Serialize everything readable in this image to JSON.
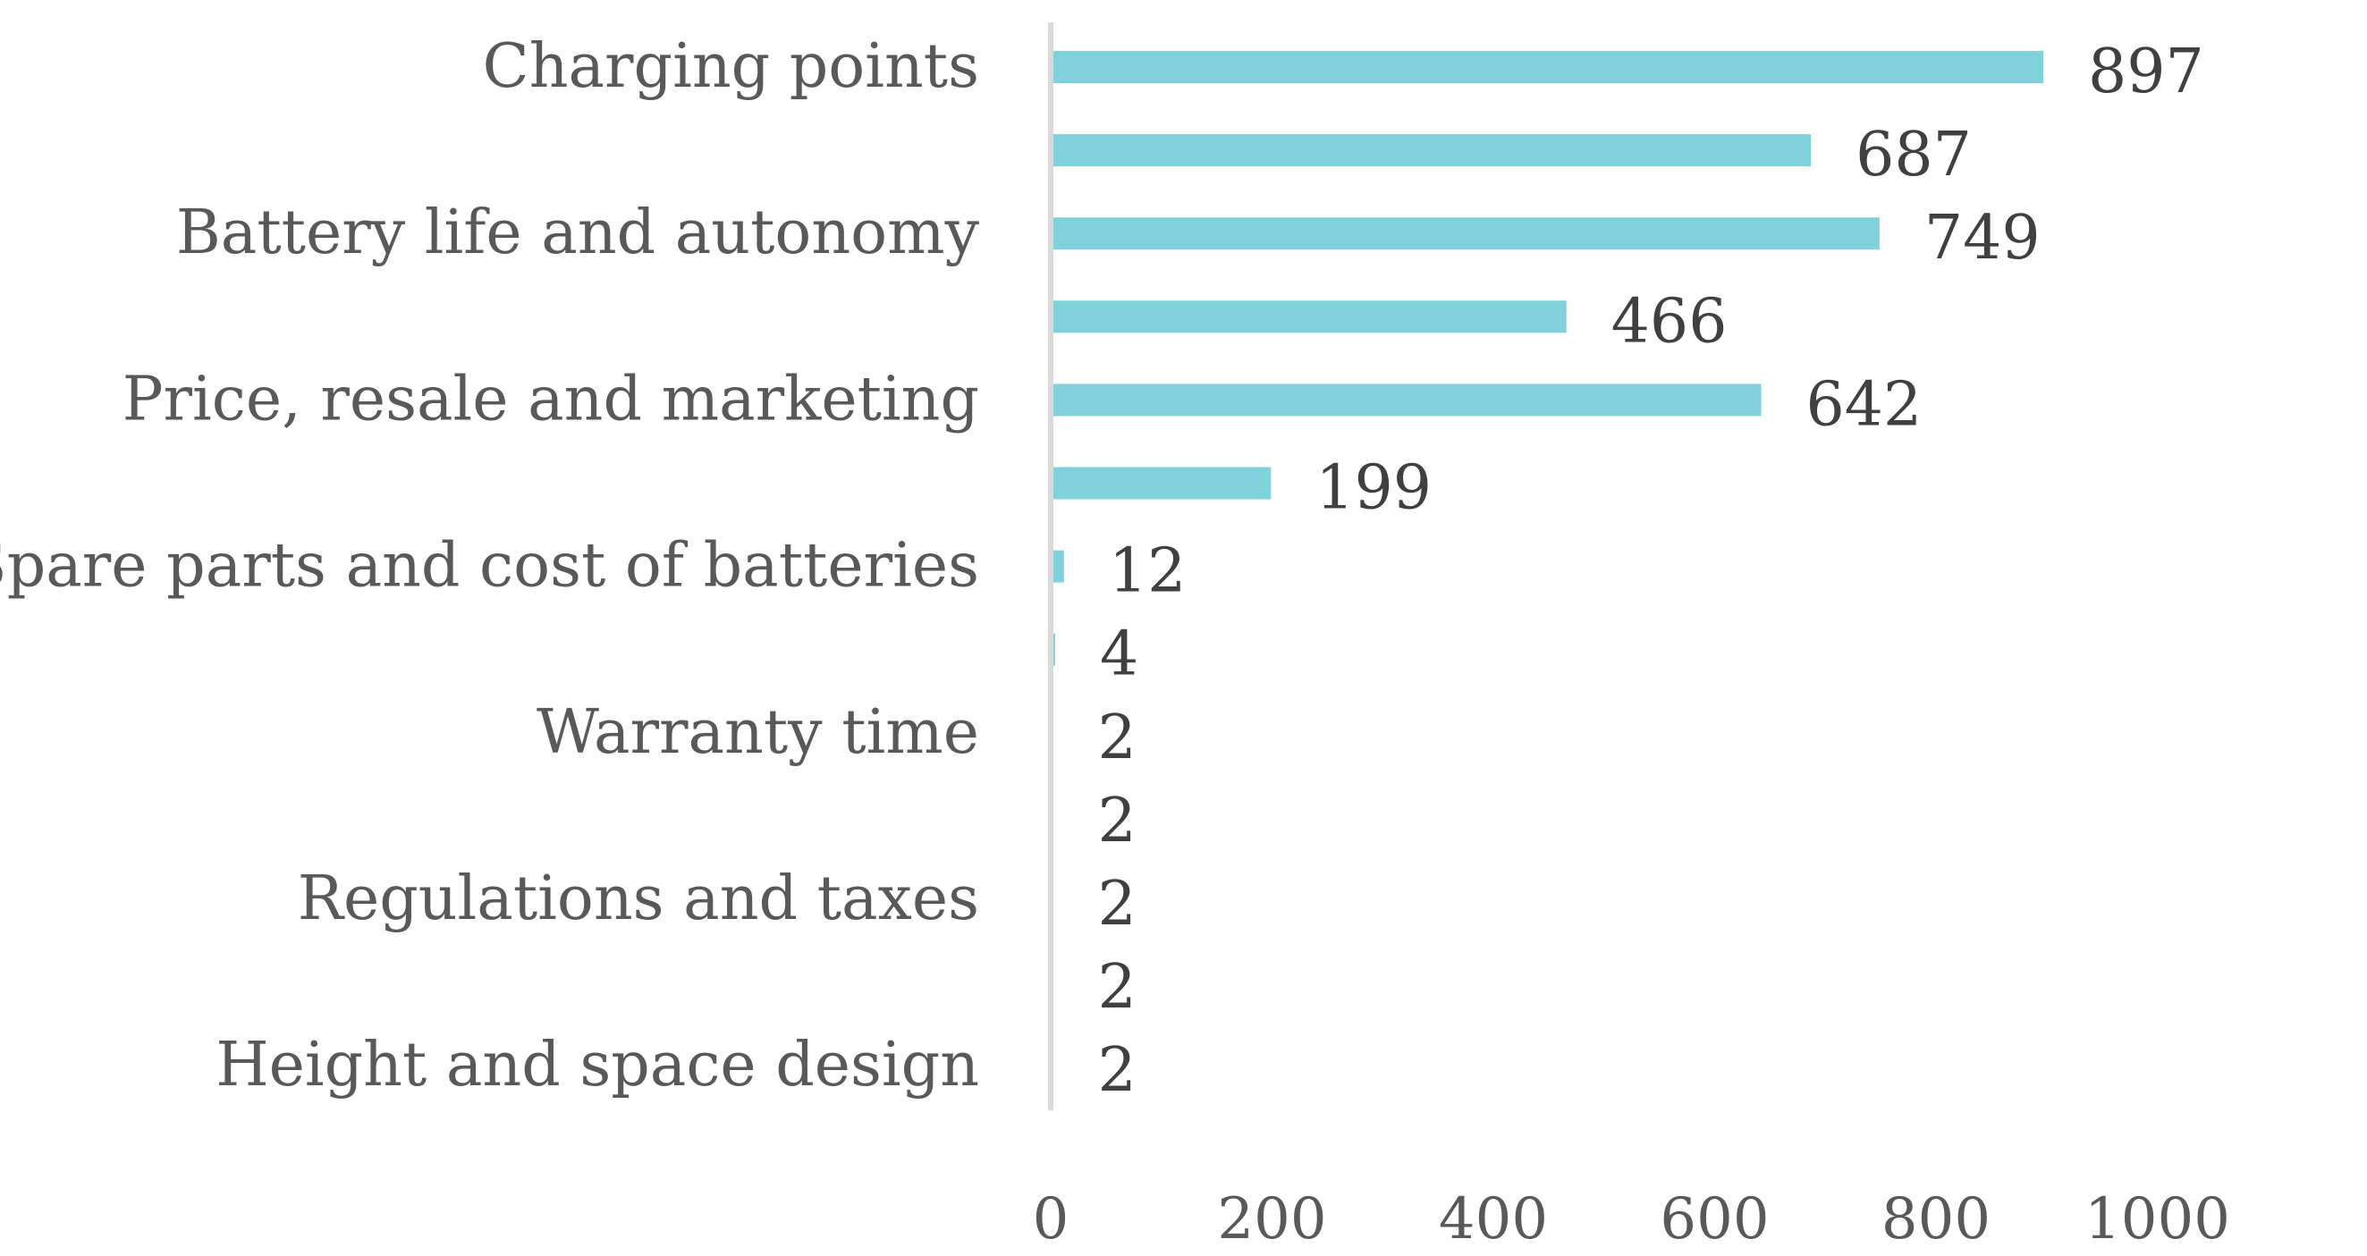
{
  "chart_data": {
    "type": "bar",
    "orientation": "horizontal",
    "title": "",
    "xlabel": "",
    "ylabel": "",
    "categories": [
      "Charging points",
      "",
      "Battery life and autonomy",
      "",
      "Price, resale and marketing",
      "",
      "Spare parts and cost of batteries",
      "",
      "Warranty time",
      "",
      "Regulations and taxes",
      "",
      "Height and space design"
    ],
    "values": [
      897,
      687,
      749,
      466,
      642,
      199,
      12,
      4,
      2,
      2,
      2,
      2,
      2
    ],
    "xlim": [
      0,
      1000
    ],
    "xticks": [
      0,
      200,
      400,
      600,
      800,
      1000
    ],
    "grid": false,
    "legend": "none",
    "colors": {
      "bar": "#7fd2da",
      "axis": "#d9d9d9",
      "label_text": "#595959",
      "value_text": "#404040"
    }
  }
}
